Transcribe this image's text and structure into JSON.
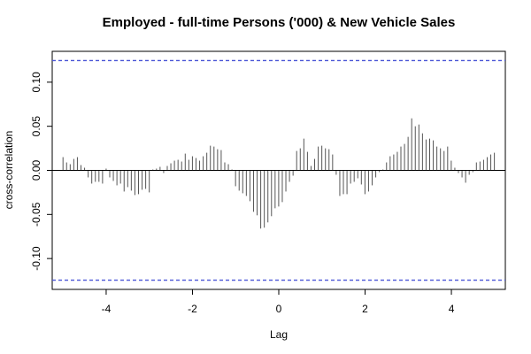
{
  "chart_data": {
    "type": "bar",
    "title": "Employed - full-time Persons ('000) & New Vehicle Sales",
    "xlabel": "Lag",
    "ylabel": "cross-correlation",
    "xlim": [
      -5.25,
      5.25
    ],
    "ylim": [
      -0.135,
      0.135
    ],
    "xticks": [
      -4,
      -2,
      0,
      2,
      4
    ],
    "xtick_labels": [
      "-4",
      "-2",
      "0",
      "2",
      "4"
    ],
    "yticks": [
      -0.1,
      -0.05,
      0.0,
      0.05,
      0.1
    ],
    "ytick_labels": [
      "-0.10",
      "-0.05",
      "0.00",
      "0.05",
      "0.10"
    ],
    "lag_step": 0.0833,
    "lag_min": -5,
    "values": [
      0.015,
      0.009,
      0.007,
      0.013,
      0.015,
      0.006,
      0.003,
      -0.008,
      -0.015,
      -0.013,
      -0.013,
      -0.015,
      0.002,
      -0.008,
      -0.012,
      -0.017,
      -0.015,
      -0.024,
      -0.019,
      -0.023,
      -0.028,
      -0.027,
      -0.022,
      -0.021,
      -0.025,
      0.001,
      0.002,
      0.004,
      -0.003,
      0.005,
      0.008,
      0.011,
      0.012,
      0.01,
      0.019,
      0.012,
      0.016,
      0.014,
      0.011,
      0.016,
      0.02,
      0.028,
      0.027,
      0.024,
      0.023,
      0.009,
      0.007,
      0.001,
      -0.018,
      -0.023,
      -0.026,
      -0.029,
      -0.035,
      -0.047,
      -0.051,
      -0.066,
      -0.065,
      -0.059,
      -0.052,
      -0.043,
      -0.041,
      -0.036,
      -0.024,
      -0.013,
      -0.006,
      0.022,
      0.025,
      0.036,
      0.021,
      0.005,
      0.013,
      0.027,
      0.028,
      0.025,
      0.024,
      0.018,
      -0.005,
      -0.029,
      -0.027,
      -0.027,
      -0.015,
      -0.013,
      -0.009,
      -0.016,
      -0.027,
      -0.024,
      -0.017,
      -0.008,
      -0.002,
      0.001,
      0.009,
      0.016,
      0.018,
      0.021,
      0.027,
      0.03,
      0.038,
      0.059,
      0.05,
      0.052,
      0.042,
      0.035,
      0.036,
      0.034,
      0.027,
      0.025,
      0.022,
      0.027,
      0.011,
      0.003,
      -0.003,
      -0.008,
      -0.014,
      -0.005,
      -0.002,
      0.009,
      0.01,
      0.012,
      0.015,
      0.018,
      0.02
    ],
    "confidence_bound": 0.1245,
    "zero_line": 0,
    "bar_color": "#555555",
    "bound_color": "#4a55d6",
    "frame_color": "#000000",
    "grid": false,
    "legend": "none"
  }
}
